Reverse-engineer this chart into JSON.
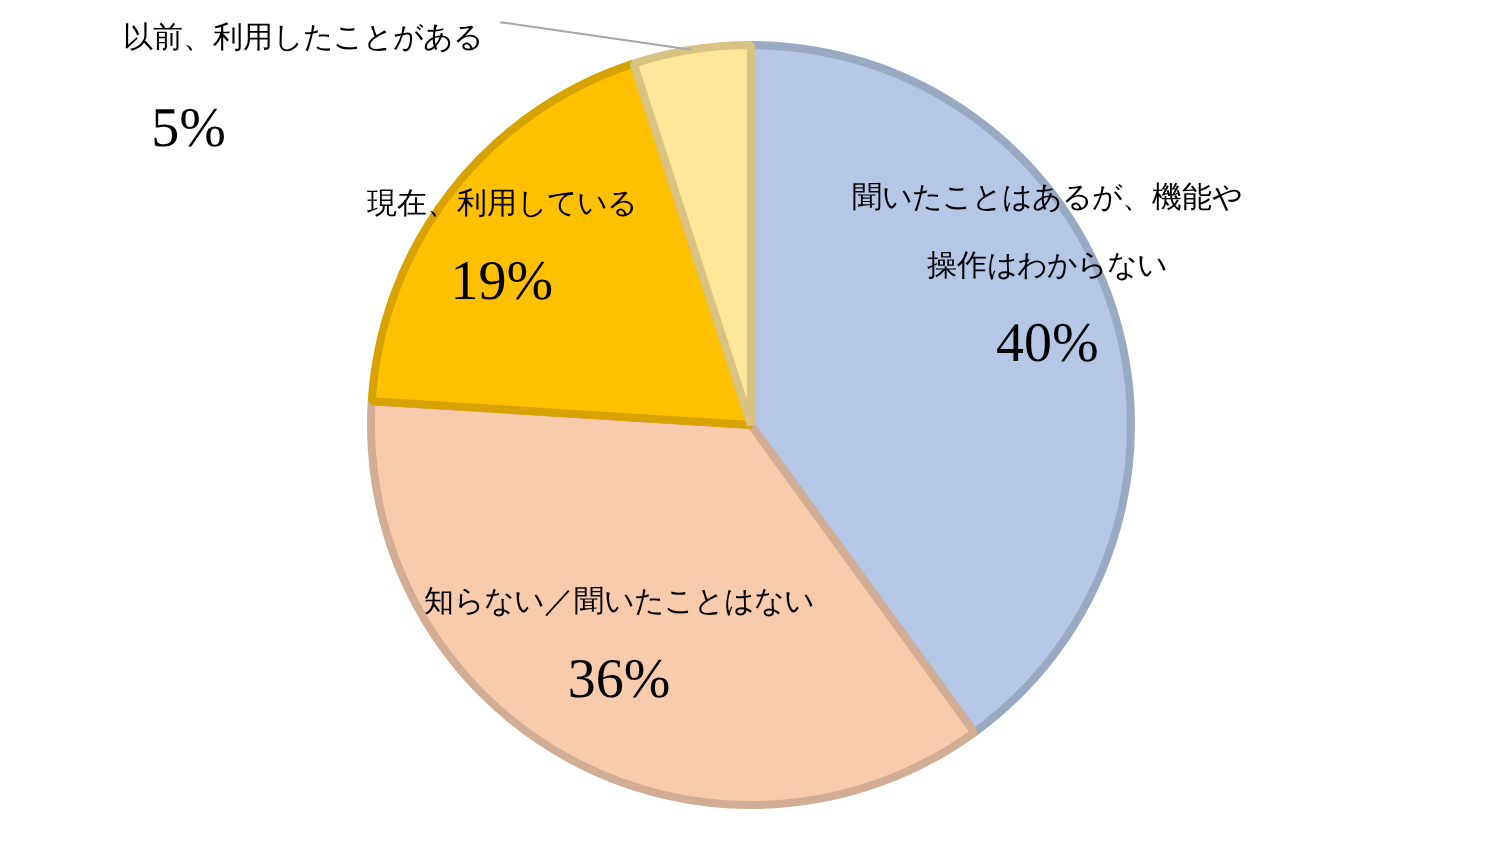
{
  "chart_data": {
    "type": "pie",
    "categories": [
      "聞いたことはあるが、機能や操作はわからない",
      "知らない／聞いたことはない",
      "現在、利用している",
      "以前、利用したことがある"
    ],
    "values": [
      40,
      36,
      19,
      5
    ],
    "colors": [
      "#b4c7e7",
      "#f8cbad",
      "#ffc000",
      "#ffe699"
    ],
    "value_labels": [
      "40%",
      "36%",
      "19%",
      "5%"
    ]
  }
}
